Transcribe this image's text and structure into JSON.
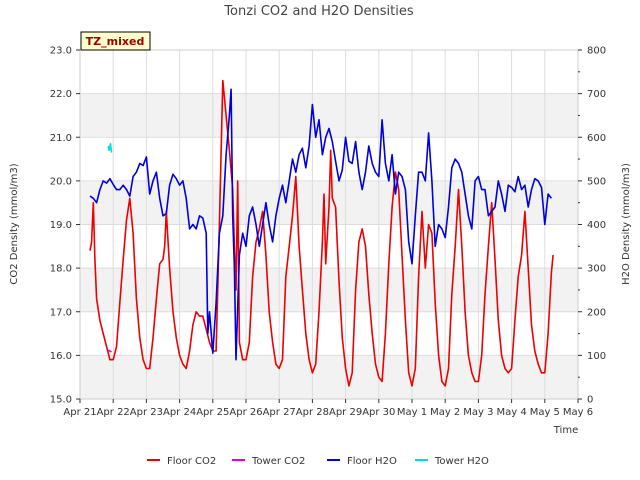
{
  "chart_data": {
    "type": "line",
    "title": "Tonzi CO2 and H2O Densities",
    "xlabel": "Time",
    "ylabel_left": "CO2 Density (mmol/m3)",
    "ylabel_right": "H2O Density (mmol/m3)",
    "annotation": "TZ_mixed",
    "x_range_days": [
      0,
      15
    ],
    "x_ticks": [
      {
        "label": "Apr 21",
        "day": 0
      },
      {
        "label": "Apr 22",
        "day": 1
      },
      {
        "label": "Apr 23",
        "day": 2
      },
      {
        "label": "Apr 24",
        "day": 3
      },
      {
        "label": "Apr 25",
        "day": 4
      },
      {
        "label": "Apr 26",
        "day": 5
      },
      {
        "label": "Apr 27",
        "day": 6
      },
      {
        "label": "Apr 28",
        "day": 7
      },
      {
        "label": "Apr 29",
        "day": 8
      },
      {
        "label": "Apr 30",
        "day": 9
      },
      {
        "label": "May 1",
        "day": 10
      },
      {
        "label": "May 2",
        "day": 11
      },
      {
        "label": "May 3",
        "day": 12
      },
      {
        "label": "May 4",
        "day": 13
      },
      {
        "label": "May 5",
        "day": 14
      },
      {
        "label": "May 6",
        "day": 15
      }
    ],
    "ylim_left": [
      15.0,
      23.0
    ],
    "yticks_left": [
      "15.0",
      "16.0",
      "17.0",
      "18.0",
      "19.0",
      "20.0",
      "21.0",
      "22.0",
      "23.0"
    ],
    "ylim_right": [
      0,
      800
    ],
    "yticks_right": [
      "0",
      "100",
      "200",
      "300",
      "400",
      "500",
      "600",
      "700",
      "800"
    ],
    "series": [
      {
        "name": "Floor CO2",
        "axis": "left",
        "color": "#ee0000",
        "points": [
          [
            0.3,
            18.4
          ],
          [
            0.35,
            18.6
          ],
          [
            0.4,
            19.5
          ],
          [
            0.45,
            18.2
          ],
          [
            0.5,
            17.3
          ],
          [
            0.6,
            16.8
          ],
          [
            0.7,
            16.5
          ],
          [
            0.8,
            16.2
          ],
          [
            0.9,
            15.9
          ],
          [
            1.0,
            15.9
          ],
          [
            1.1,
            16.2
          ],
          [
            1.2,
            17.2
          ],
          [
            1.3,
            18.2
          ],
          [
            1.4,
            19.1
          ],
          [
            1.5,
            19.6
          ],
          [
            1.6,
            18.8
          ],
          [
            1.7,
            17.3
          ],
          [
            1.8,
            16.4
          ],
          [
            1.9,
            15.9
          ],
          [
            2.0,
            15.7
          ],
          [
            2.1,
            15.7
          ],
          [
            2.2,
            16.4
          ],
          [
            2.3,
            17.3
          ],
          [
            2.4,
            18.1
          ],
          [
            2.5,
            18.2
          ],
          [
            2.55,
            18.5
          ],
          [
            2.6,
            19.3
          ],
          [
            2.7,
            18.0
          ],
          [
            2.8,
            17.0
          ],
          [
            2.9,
            16.4
          ],
          [
            3.0,
            16.0
          ],
          [
            3.1,
            15.8
          ],
          [
            3.2,
            15.7
          ],
          [
            3.3,
            16.1
          ],
          [
            3.4,
            16.7
          ],
          [
            3.5,
            17.0
          ],
          [
            3.6,
            16.9
          ],
          [
            3.7,
            16.9
          ],
          [
            3.8,
            16.6
          ],
          [
            3.9,
            16.3
          ],
          [
            4.0,
            16.1
          ],
          [
            4.1,
            16.1
          ],
          [
            4.2,
            19.0
          ],
          [
            4.3,
            22.3
          ],
          [
            4.4,
            21.5
          ],
          [
            4.5,
            20.7
          ],
          [
            4.6,
            19.8
          ],
          [
            4.65,
            18.5
          ],
          [
            4.7,
            17.5
          ],
          [
            4.75,
            20.0
          ],
          [
            4.8,
            16.3
          ],
          [
            4.9,
            15.9
          ],
          [
            5.0,
            15.9
          ],
          [
            5.1,
            16.3
          ],
          [
            5.2,
            17.8
          ],
          [
            5.3,
            18.6
          ],
          [
            5.4,
            18.9
          ],
          [
            5.5,
            19.3
          ],
          [
            5.6,
            18.3
          ],
          [
            5.7,
            17.0
          ],
          [
            5.8,
            16.3
          ],
          [
            5.9,
            15.8
          ],
          [
            6.0,
            15.7
          ],
          [
            6.1,
            15.9
          ],
          [
            6.2,
            17.8
          ],
          [
            6.3,
            18.5
          ],
          [
            6.4,
            19.2
          ],
          [
            6.5,
            20.1
          ],
          [
            6.6,
            18.5
          ],
          [
            6.7,
            17.5
          ],
          [
            6.8,
            16.5
          ],
          [
            6.9,
            15.9
          ],
          [
            7.0,
            15.6
          ],
          [
            7.1,
            15.8
          ],
          [
            7.2,
            17.0
          ],
          [
            7.3,
            18.6
          ],
          [
            7.35,
            19.7
          ],
          [
            7.4,
            18.1
          ],
          [
            7.5,
            19.4
          ],
          [
            7.55,
            20.7
          ],
          [
            7.6,
            19.6
          ],
          [
            7.7,
            19.4
          ],
          [
            7.8,
            17.7
          ],
          [
            7.9,
            16.4
          ],
          [
            8.0,
            15.7
          ],
          [
            8.1,
            15.3
          ],
          [
            8.2,
            15.6
          ],
          [
            8.3,
            17.5
          ],
          [
            8.4,
            18.6
          ],
          [
            8.5,
            18.9
          ],
          [
            8.6,
            18.5
          ],
          [
            8.7,
            17.4
          ],
          [
            8.8,
            16.5
          ],
          [
            8.9,
            15.8
          ],
          [
            9.0,
            15.5
          ],
          [
            9.1,
            15.4
          ],
          [
            9.2,
            16.5
          ],
          [
            9.3,
            18.1
          ],
          [
            9.4,
            19.4
          ],
          [
            9.5,
            20.2
          ],
          [
            9.6,
            19.8
          ],
          [
            9.7,
            18.3
          ],
          [
            9.8,
            16.8
          ],
          [
            9.9,
            15.6
          ],
          [
            10.0,
            15.3
          ],
          [
            10.1,
            15.7
          ],
          [
            10.2,
            17.8
          ],
          [
            10.3,
            19.3
          ],
          [
            10.4,
            18.0
          ],
          [
            10.5,
            19.0
          ],
          [
            10.6,
            18.8
          ],
          [
            10.7,
            17.2
          ],
          [
            10.8,
            16.0
          ],
          [
            10.9,
            15.4
          ],
          [
            11.0,
            15.3
          ],
          [
            11.1,
            15.7
          ],
          [
            11.2,
            17.4
          ],
          [
            11.3,
            18.5
          ],
          [
            11.4,
            19.8
          ],
          [
            11.5,
            18.5
          ],
          [
            11.6,
            17.0
          ],
          [
            11.7,
            16.0
          ],
          [
            11.8,
            15.6
          ],
          [
            11.9,
            15.4
          ],
          [
            12.0,
            15.4
          ],
          [
            12.1,
            16.0
          ],
          [
            12.2,
            17.4
          ],
          [
            12.3,
            18.5
          ],
          [
            12.4,
            19.5
          ],
          [
            12.5,
            18.2
          ],
          [
            12.6,
            16.8
          ],
          [
            12.7,
            16.0
          ],
          [
            12.8,
            15.7
          ],
          [
            12.9,
            15.6
          ],
          [
            13.0,
            15.7
          ],
          [
            13.1,
            16.8
          ],
          [
            13.2,
            17.8
          ],
          [
            13.3,
            18.3
          ],
          [
            13.4,
            19.3
          ],
          [
            13.5,
            18.0
          ],
          [
            13.6,
            16.7
          ],
          [
            13.7,
            16.1
          ],
          [
            13.8,
            15.8
          ],
          [
            13.9,
            15.6
          ],
          [
            14.0,
            15.6
          ],
          [
            14.1,
            16.5
          ],
          [
            14.2,
            17.9
          ],
          [
            14.25,
            18.3
          ]
        ]
      },
      {
        "name": "Tower CO2",
        "axis": "left",
        "color": "#dd00dd",
        "points": [
          [
            0.85,
            16.12
          ],
          [
            0.95,
            16.08
          ]
        ]
      },
      {
        "name": "Floor H2O",
        "axis": "right",
        "color": "#0000dd",
        "points": [
          [
            0.3,
            465
          ],
          [
            0.4,
            460
          ],
          [
            0.5,
            450
          ],
          [
            0.6,
            480
          ],
          [
            0.7,
            500
          ],
          [
            0.8,
            495
          ],
          [
            0.9,
            505
          ],
          [
            1.0,
            492
          ],
          [
            1.1,
            480
          ],
          [
            1.2,
            480
          ],
          [
            1.3,
            490
          ],
          [
            1.4,
            480
          ],
          [
            1.5,
            465
          ],
          [
            1.6,
            510
          ],
          [
            1.7,
            520
          ],
          [
            1.8,
            540
          ],
          [
            1.9,
            535
          ],
          [
            2.0,
            555
          ],
          [
            2.1,
            470
          ],
          [
            2.2,
            500
          ],
          [
            2.3,
            520
          ],
          [
            2.4,
            460
          ],
          [
            2.5,
            420
          ],
          [
            2.6,
            425
          ],
          [
            2.7,
            490
          ],
          [
            2.8,
            515
          ],
          [
            2.9,
            505
          ],
          [
            3.0,
            490
          ],
          [
            3.1,
            500
          ],
          [
            3.2,
            460
          ],
          [
            3.3,
            390
          ],
          [
            3.4,
            400
          ],
          [
            3.5,
            390
          ],
          [
            3.6,
            420
          ],
          [
            3.7,
            415
          ],
          [
            3.8,
            380
          ],
          [
            3.85,
            150
          ],
          [
            3.9,
            200
          ],
          [
            4.0,
            105
          ],
          [
            4.1,
            220
          ],
          [
            4.2,
            380
          ],
          [
            4.3,
            420
          ],
          [
            4.4,
            560
          ],
          [
            4.5,
            650
          ],
          [
            4.55,
            710
          ],
          [
            4.6,
            420
          ],
          [
            4.65,
            300
          ],
          [
            4.7,
            90
          ],
          [
            4.8,
            330
          ],
          [
            4.9,
            380
          ],
          [
            5.0,
            350
          ],
          [
            5.1,
            420
          ],
          [
            5.2,
            440
          ],
          [
            5.3,
            400
          ],
          [
            5.4,
            350
          ],
          [
            5.5,
            400
          ],
          [
            5.6,
            450
          ],
          [
            5.7,
            400
          ],
          [
            5.8,
            360
          ],
          [
            5.9,
            420
          ],
          [
            6.0,
            460
          ],
          [
            6.1,
            490
          ],
          [
            6.2,
            450
          ],
          [
            6.3,
            500
          ],
          [
            6.4,
            550
          ],
          [
            6.5,
            520
          ],
          [
            6.6,
            560
          ],
          [
            6.7,
            575
          ],
          [
            6.8,
            530
          ],
          [
            6.9,
            580
          ],
          [
            7.0,
            675
          ],
          [
            7.1,
            600
          ],
          [
            7.2,
            640
          ],
          [
            7.3,
            560
          ],
          [
            7.4,
            600
          ],
          [
            7.5,
            620
          ],
          [
            7.6,
            590
          ],
          [
            7.7,
            545
          ],
          [
            7.8,
            500
          ],
          [
            7.9,
            525
          ],
          [
            8.0,
            600
          ],
          [
            8.1,
            545
          ],
          [
            8.2,
            540
          ],
          [
            8.3,
            590
          ],
          [
            8.4,
            520
          ],
          [
            8.5,
            480
          ],
          [
            8.6,
            520
          ],
          [
            8.7,
            580
          ],
          [
            8.8,
            540
          ],
          [
            8.9,
            520
          ],
          [
            9.0,
            510
          ],
          [
            9.1,
            640
          ],
          [
            9.2,
            540
          ],
          [
            9.3,
            500
          ],
          [
            9.4,
            560
          ],
          [
            9.5,
            470
          ],
          [
            9.6,
            520
          ],
          [
            9.7,
            510
          ],
          [
            9.8,
            480
          ],
          [
            9.9,
            360
          ],
          [
            10.0,
            310
          ],
          [
            10.1,
            420
          ],
          [
            10.2,
            520
          ],
          [
            10.3,
            520
          ],
          [
            10.4,
            500
          ],
          [
            10.5,
            610
          ],
          [
            10.6,
            500
          ],
          [
            10.7,
            350
          ],
          [
            10.8,
            400
          ],
          [
            10.9,
            390
          ],
          [
            11.0,
            370
          ],
          [
            11.1,
            440
          ],
          [
            11.2,
            530
          ],
          [
            11.3,
            550
          ],
          [
            11.4,
            540
          ],
          [
            11.5,
            520
          ],
          [
            11.6,
            470
          ],
          [
            11.7,
            420
          ],
          [
            11.8,
            390
          ],
          [
            11.9,
            500
          ],
          [
            12.0,
            510
          ],
          [
            12.1,
            480
          ],
          [
            12.2,
            480
          ],
          [
            12.3,
            420
          ],
          [
            12.4,
            430
          ],
          [
            12.5,
            440
          ],
          [
            12.6,
            500
          ],
          [
            12.7,
            470
          ],
          [
            12.8,
            430
          ],
          [
            12.9,
            490
          ],
          [
            13.0,
            485
          ],
          [
            13.1,
            475
          ],
          [
            13.2,
            510
          ],
          [
            13.3,
            480
          ],
          [
            13.4,
            490
          ],
          [
            13.5,
            440
          ],
          [
            13.6,
            480
          ],
          [
            13.7,
            505
          ],
          [
            13.8,
            500
          ],
          [
            13.9,
            485
          ],
          [
            14.0,
            400
          ],
          [
            14.1,
            470
          ],
          [
            14.2,
            460
          ]
        ]
      },
      {
        "name": "Tower H2O",
        "axis": "right",
        "color": "#00dddd",
        "points": [
          [
            0.85,
            580
          ],
          [
            0.88,
            570
          ],
          [
            0.92,
            585
          ],
          [
            0.95,
            565
          ]
        ]
      }
    ],
    "legend": [
      "Floor CO2",
      "Tower CO2",
      "Floor H2O",
      "Tower H2O"
    ],
    "legend_position": "bottom-center",
    "grid": true
  }
}
